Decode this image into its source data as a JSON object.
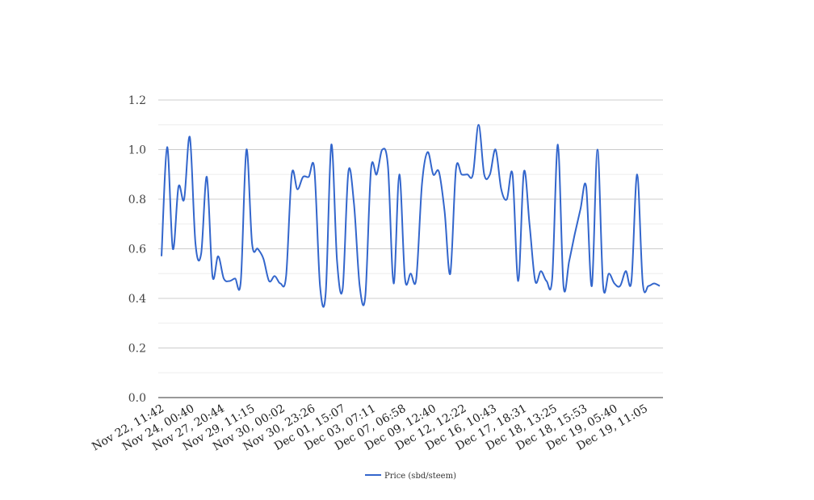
{
  "chart_data": {
    "type": "line",
    "title": "",
    "xlabel": "",
    "ylabel": "",
    "ylim": [
      0,
      1.2
    ],
    "yticks": [
      0.0,
      0.2,
      0.4,
      0.6,
      0.8,
      1.0,
      1.2
    ],
    "ytick_labels": [
      "0.0",
      "0.2",
      "0.4",
      "0.6",
      "0.8",
      "1.0",
      "1.2"
    ],
    "minor_gridlines": true,
    "grid": true,
    "legend_position": "bottom-center",
    "x_tick_labels": [
      "Nov 22, 11:42",
      "Nov 24, 00:40",
      "Nov 27, 20:44",
      "Nov 29, 11:15",
      "Nov 30, 00:02",
      "Nov 30, 23:26",
      "Dec 01, 15:07",
      "Dec 03, 07:11",
      "Dec 07, 06:58",
      "Dec 09, 12:40",
      "Dec 12, 12:22",
      "Dec 16, 10:43",
      "Dec 17, 18:31",
      "Dec 18, 13:25",
      "Dec 18, 15:53",
      "Dec 19, 05:40",
      "Dec 19, 11:05"
    ],
    "series": [
      {
        "name": "Price (sbd/steem)",
        "color": "#3366cc",
        "values": [
          0.57,
          1.01,
          0.6,
          0.85,
          0.8,
          1.05,
          0.62,
          0.58,
          0.89,
          0.49,
          0.57,
          0.48,
          0.47,
          0.48,
          0.47,
          1.0,
          0.62,
          0.6,
          0.56,
          0.47,
          0.49,
          0.46,
          0.49,
          0.9,
          0.84,
          0.89,
          0.89,
          0.92,
          0.45,
          0.42,
          1.02,
          0.55,
          0.44,
          0.91,
          0.78,
          0.45,
          0.41,
          0.92,
          0.9,
          1.0,
          0.93,
          0.46,
          0.9,
          0.48,
          0.5,
          0.48,
          0.86,
          0.99,
          0.9,
          0.91,
          0.75,
          0.5,
          0.92,
          0.9,
          0.9,
          0.9,
          1.1,
          0.9,
          0.9,
          1.0,
          0.84,
          0.8,
          0.9,
          0.47,
          0.91,
          0.7,
          0.47,
          0.51,
          0.47,
          0.48,
          1.02,
          0.45,
          0.55,
          0.66,
          0.76,
          0.85,
          0.45,
          1.0,
          0.45,
          0.5,
          0.46,
          0.45,
          0.51,
          0.47,
          0.9,
          0.46,
          0.45,
          0.46,
          0.45
        ]
      }
    ]
  }
}
